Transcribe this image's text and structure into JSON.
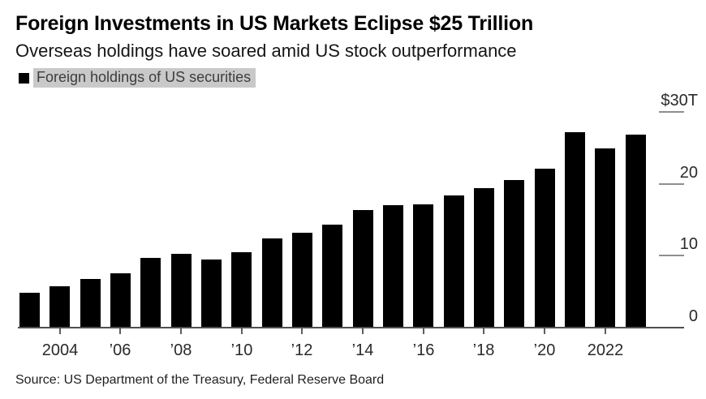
{
  "chart_data": {
    "type": "bar",
    "title": "Foreign Investments in US Markets Eclipse $25 Trillion",
    "subtitle": "Overseas holdings have soared amid US stock outperformance",
    "legend": "Foreign holdings of US securities",
    "source": "Source: US Department of the Treasury, Federal Reserve Board",
    "unit": "trillions of US dollars",
    "bar_color": "#000000",
    "legend_highlight_color": "#c9c9c9",
    "grid": false,
    "legend_position": "top-left",
    "axis_side": "right",
    "categories": [
      2003,
      2004,
      2005,
      2006,
      2007,
      2008,
      2009,
      2010,
      2011,
      2012,
      2013,
      2014,
      2015,
      2016,
      2017,
      2018,
      2019,
      2020,
      2021,
      2022,
      2023
    ],
    "values": [
      4.8,
      5.8,
      6.8,
      7.6,
      9.7,
      10.3,
      9.5,
      10.5,
      12.4,
      13.2,
      14.3,
      16.4,
      17.0,
      17.1,
      18.4,
      19.4,
      20.5,
      22.1,
      27.2,
      24.9,
      26.8
    ],
    "ylim": [
      0,
      30
    ],
    "yticks": [
      {
        "label": "$30T",
        "value": 30
      },
      {
        "label": "20",
        "value": 20
      },
      {
        "label": "10",
        "value": 10
      },
      {
        "label": "0",
        "value": 0
      }
    ],
    "xticks": [
      {
        "label": "2004",
        "year": 2004
      },
      {
        "label": "’06",
        "year": 2006
      },
      {
        "label": "’08",
        "year": 2008
      },
      {
        "label": "’10",
        "year": 2010
      },
      {
        "label": "’12",
        "year": 2012
      },
      {
        "label": "’14",
        "year": 2014
      },
      {
        "label": "’16",
        "year": 2016
      },
      {
        "label": "’18",
        "year": 2018
      },
      {
        "label": "’20",
        "year": 2020
      },
      {
        "label": "2022",
        "year": 2022
      }
    ]
  }
}
